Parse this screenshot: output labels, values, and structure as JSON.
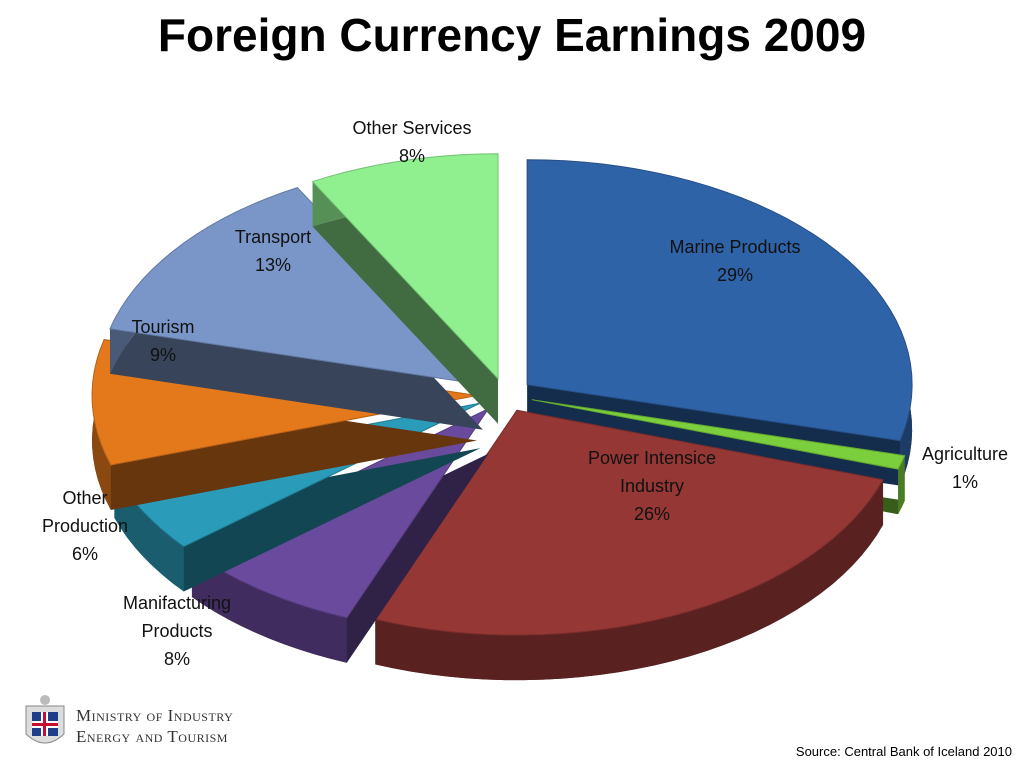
{
  "chart_data": {
    "type": "pie",
    "title": "Foreign Currency Earnings 2009",
    "categories": [
      "Marine Products",
      "Agriculture",
      "Power Intensice Industry",
      "Manifacturing Products",
      "Other Production",
      "Tourism",
      "Transport",
      "Other Services"
    ],
    "values": [
      29,
      1,
      26,
      8,
      6,
      9,
      13,
      8
    ],
    "value_labels": [
      "29%",
      "1%",
      "26%",
      "8%",
      "6%",
      "9%",
      "13%",
      "8%"
    ],
    "colors": [
      "#2f63a8",
      "#7ccf3c",
      "#953735",
      "#6a4a9c",
      "#2a9bb8",
      "#e4791c",
      "#7a96c8",
      "#90f090"
    ],
    "source": "Source: Central Bank of Iceland 2010"
  },
  "logo": {
    "lines": [
      "Ministry of Industry",
      "Energy and Tourism"
    ]
  }
}
